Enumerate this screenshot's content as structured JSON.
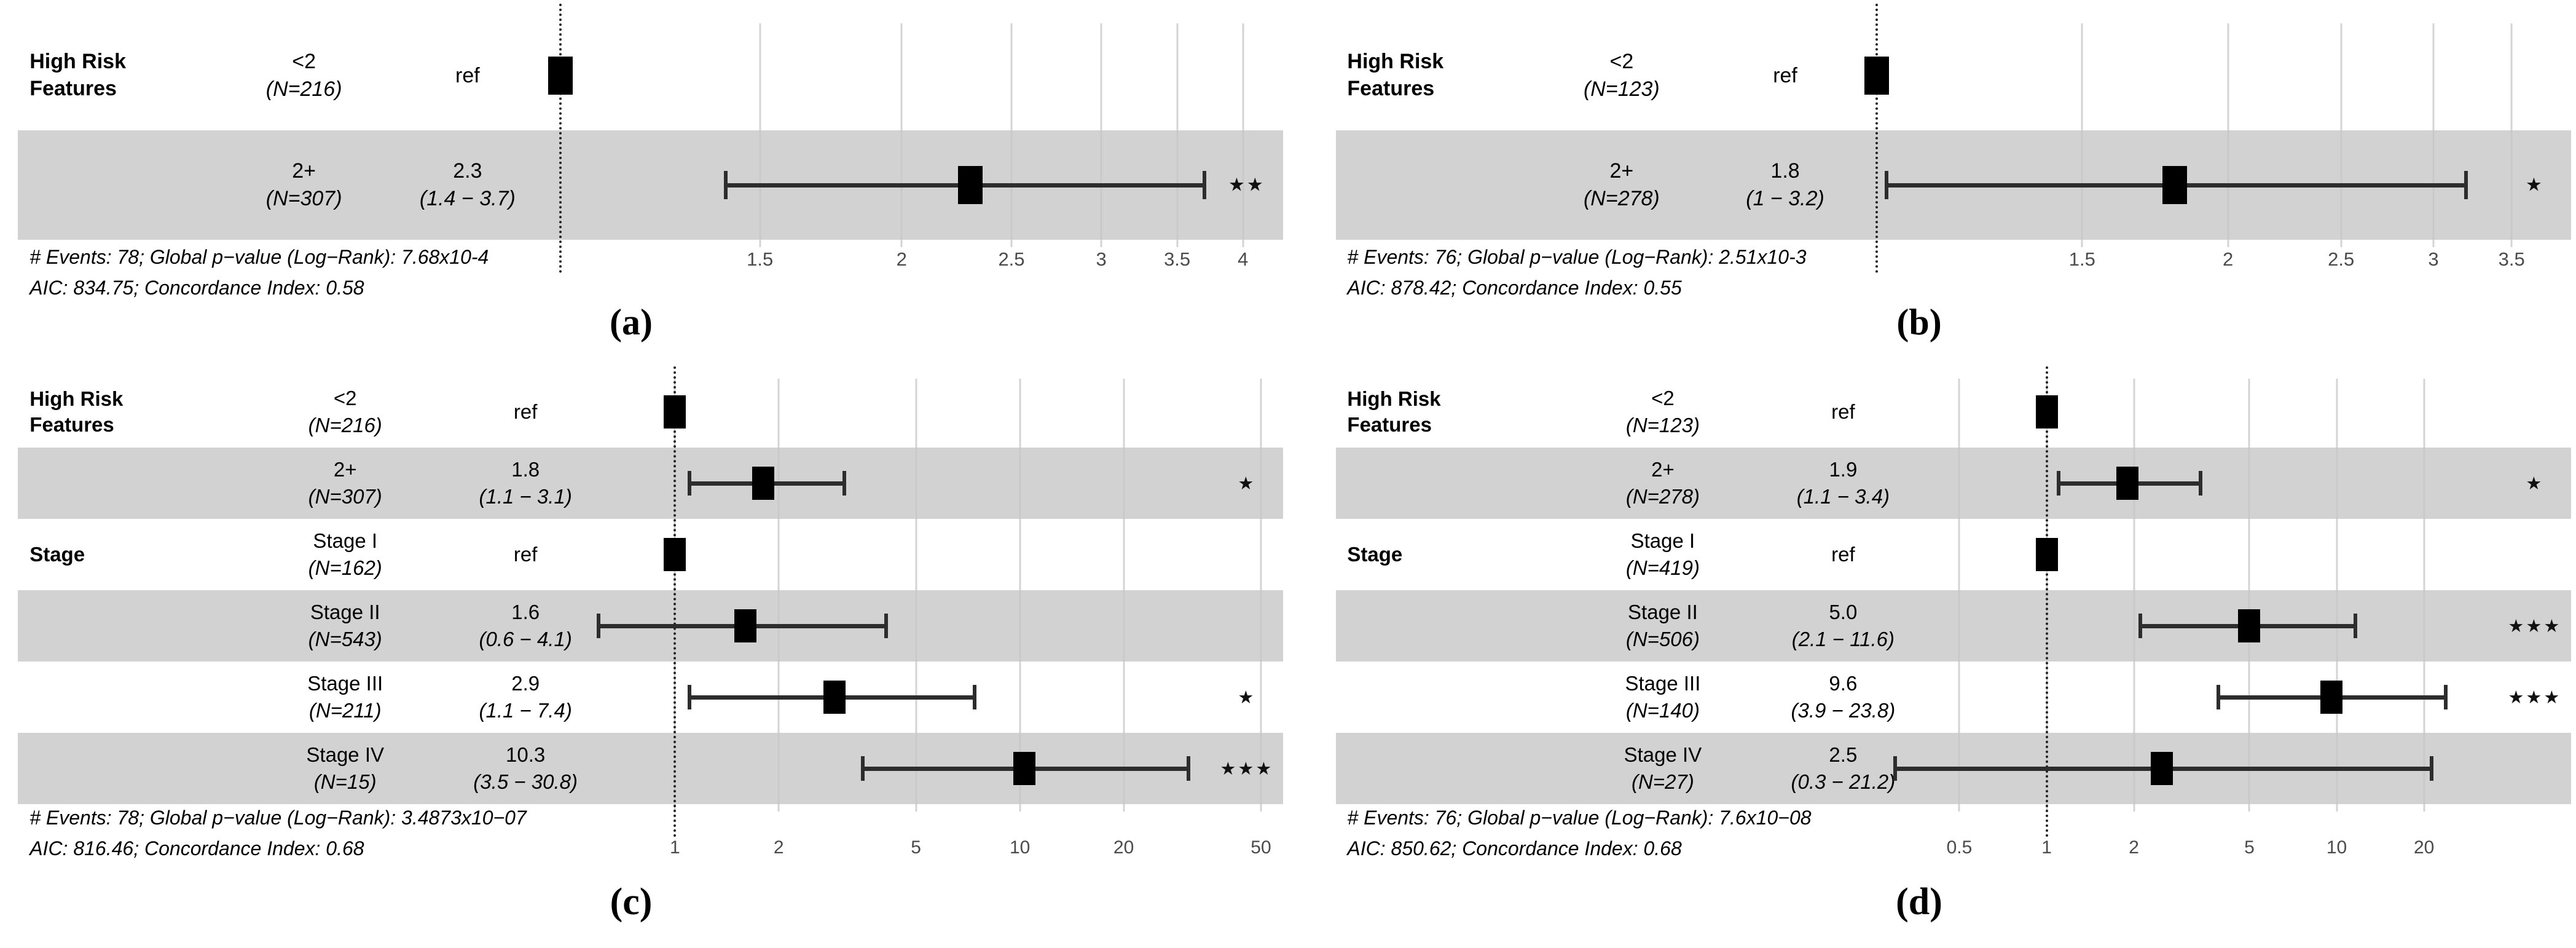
{
  "chart_data": {
    "type": "forest",
    "title": "",
    "grid": true,
    "style": {
      "background": "#ffffff",
      "band_color": "#d2d2d2",
      "marker_color": "#000000",
      "errorbar_color": "#2d2d2d",
      "grid_color": "#c6c6c6",
      "tick_color": "#4b4b4b",
      "ref_line_color": "#222222",
      "text_color": "#000000",
      "star_glyph": "★"
    },
    "panels": [
      {
        "id": "a",
        "letter": "(a)",
        "axis": {
          "scale": "log",
          "ref_value": 1,
          "ref_pct": 43.5,
          "anchor_value": 4,
          "anchor_pct": 96.5,
          "ticks": [
            {
              "v": 1.5,
              "label": "1.5"
            },
            {
              "v": 2,
              "label": "2"
            },
            {
              "v": 2.5,
              "label": "2.5"
            },
            {
              "v": 3,
              "label": "3"
            },
            {
              "v": 3.5,
              "label": "3.5"
            },
            {
              "v": 4,
              "label": "4"
            }
          ]
        },
        "rows": [
          {
            "group": "High Risk\nFeatures",
            "level": "<2",
            "n": "(N=216)",
            "estimate": "ref",
            "is_ref": true,
            "hr": 1,
            "shaded": false,
            "stars": ""
          },
          {
            "group": "",
            "level": "2+",
            "n": "(N=307)",
            "estimate": "2.3",
            "ci": "(1.4 − 3.7)",
            "hr": 2.3,
            "lo": 1.4,
            "hi": 3.7,
            "shaded": true,
            "stars": "**"
          }
        ],
        "footer": [
          "# Events: 78; Global p−value (Log−Rank): 7.68x10-4",
          "AIC: 834.75; Concordance Index: 0.58"
        ]
      },
      {
        "id": "b",
        "letter": "(b)",
        "axis": {
          "scale": "log",
          "ref_value": 1,
          "ref_pct": 45.7,
          "anchor_value": 3.5,
          "anchor_pct": 95.0,
          "ticks": [
            {
              "v": 1.5,
              "label": "1.5"
            },
            {
              "v": 2,
              "label": "2"
            },
            {
              "v": 2.5,
              "label": "2.5"
            },
            {
              "v": 3,
              "label": "3"
            },
            {
              "v": 3.5,
              "label": "3.5"
            }
          ]
        },
        "rows": [
          {
            "group": "High Risk\nFeatures",
            "level": "<2",
            "n": "(N=123)",
            "estimate": "ref",
            "is_ref": true,
            "hr": 1,
            "shaded": false,
            "stars": ""
          },
          {
            "group": "",
            "level": "2+",
            "n": "(N=278)",
            "estimate": "1.8",
            "ci": "(1 − 3.2)",
            "hr": 1.8,
            "lo": 1.02,
            "hi": 3.2,
            "shaded": true,
            "stars": "*"
          }
        ],
        "footer": [
          "# Events: 76; Global p−value (Log−Rank): 2.51x10-3",
          "AIC: 878.42; Concordance Index: 0.55"
        ]
      },
      {
        "id": "c",
        "letter": "(c)",
        "axis": {
          "scale": "log",
          "ref_value": 1,
          "ref_pct": 52.4,
          "anchor_value": 50,
          "anchor_pct": 97.9,
          "ticks": [
            {
              "v": 1,
              "label": "1"
            },
            {
              "v": 2,
              "label": "2"
            },
            {
              "v": 5,
              "label": "5"
            },
            {
              "v": 10,
              "label": "10"
            },
            {
              "v": 20,
              "label": "20"
            },
            {
              "v": 50,
              "label": "50"
            }
          ]
        },
        "rows": [
          {
            "group": "High Risk\nFeatures",
            "level": "<2",
            "n": "(N=216)",
            "estimate": "ref",
            "is_ref": true,
            "hr": 1,
            "shaded": false,
            "stars": ""
          },
          {
            "group": "",
            "level": "2+",
            "n": "(N=307)",
            "estimate": "1.8",
            "ci": "(1.1 − 3.1)",
            "hr": 1.8,
            "lo": 1.1,
            "hi": 3.1,
            "shaded": true,
            "stars": "*"
          },
          {
            "group": "Stage",
            "level": "Stage I",
            "n": "(N=162)",
            "estimate": "ref",
            "is_ref": true,
            "hr": 1,
            "shaded": false,
            "stars": ""
          },
          {
            "group": "",
            "level": "Stage II",
            "n": "(N=543)",
            "estimate": "1.6",
            "ci": "(0.6 − 4.1)",
            "hr": 1.6,
            "lo": 0.6,
            "hi": 4.1,
            "shaded": true,
            "stars": ""
          },
          {
            "group": "",
            "level": "Stage III",
            "n": "(N=211)",
            "estimate": "2.9",
            "ci": "(1.1 − 7.4)",
            "hr": 2.9,
            "lo": 1.1,
            "hi": 7.4,
            "shaded": false,
            "stars": "*"
          },
          {
            "group": "",
            "level": "Stage IV",
            "n": "(N=15)",
            "estimate": "10.3",
            "ci": "(3.5 − 30.8)",
            "hr": 10.3,
            "lo": 3.5,
            "hi": 30.8,
            "shaded": true,
            "stars": "***"
          }
        ],
        "footer": [
          "# Events: 78; Global p−value (Log−Rank): 3.4873x10−07",
          "AIC: 816.46; Concordance Index: 0.68"
        ]
      },
      {
        "id": "d",
        "letter": "(d)",
        "axis": {
          "scale": "log",
          "ref_value": 1,
          "ref_pct": 58.9,
          "anchor_value": 20,
          "anchor_pct": 88.2,
          "ticks": [
            {
              "v": 0.5,
              "label": "0.5"
            },
            {
              "v": 1,
              "label": "1"
            },
            {
              "v": 2,
              "label": "2"
            },
            {
              "v": 5,
              "label": "5"
            },
            {
              "v": 10,
              "label": "10"
            },
            {
              "v": 20,
              "label": "20"
            }
          ]
        },
        "rows": [
          {
            "group": "High Risk\nFeatures",
            "level": "<2",
            "n": "(N=123)",
            "estimate": "ref",
            "is_ref": true,
            "hr": 1,
            "shaded": false,
            "stars": ""
          },
          {
            "group": "",
            "level": "2+",
            "n": "(N=278)",
            "estimate": "1.9",
            "ci": "(1.1 − 3.4)",
            "hr": 1.9,
            "lo": 1.1,
            "hi": 3.4,
            "shaded": true,
            "stars": "*"
          },
          {
            "group": "Stage",
            "level": "Stage I",
            "n": "(N=419)",
            "estimate": "ref",
            "is_ref": true,
            "hr": 1,
            "shaded": false,
            "stars": ""
          },
          {
            "group": "",
            "level": "Stage II",
            "n": "(N=506)",
            "estimate": "5.0",
            "ci": "(2.1 − 11.6)",
            "hr": 5.0,
            "lo": 2.1,
            "hi": 11.6,
            "shaded": true,
            "stars": "***"
          },
          {
            "group": "",
            "level": "Stage III",
            "n": "(N=140)",
            "estimate": "9.6",
            "ci": "(3.9 − 23.8)",
            "hr": 9.6,
            "lo": 3.9,
            "hi": 23.8,
            "shaded": false,
            "stars": "***"
          },
          {
            "group": "",
            "level": "Stage IV",
            "n": "(N=27)",
            "estimate": "2.5",
            "ci": "(0.3 − 21.2)",
            "hr": 2.5,
            "lo": 0.3,
            "hi": 21.2,
            "shaded": true,
            "stars": ""
          }
        ],
        "footer": [
          "# Events: 76; Global p−value (Log−Rank): 7.6x10−08",
          "AIC: 850.62; Concordance Index: 0.68"
        ]
      }
    ]
  }
}
